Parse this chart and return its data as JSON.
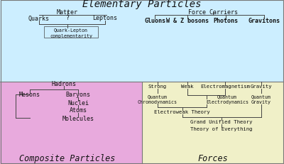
{
  "title": "Elementary Particles",
  "bg_top": "#cceeff",
  "bg_bottom_left": "#e8aadd",
  "bg_bottom_right": "#f0f0c8",
  "border_color": "#777777",
  "line_color": "#444444",
  "font_color": "#111111",
  "top_left_label": "Matter",
  "top_right_label": "Force Carriers",
  "matter_items": [
    "Quarks",
    "?",
    "Leptons"
  ],
  "matter_sub": "Quark-Lepton\ncomplementarity",
  "force_items": [
    "Gluons",
    "W & Z bosons",
    "Photons",
    "Gravitons"
  ],
  "force_sub": [
    "Strong",
    "Weak",
    "Electromagnetism",
    "Gravity"
  ],
  "composite_left": "Composite Particles",
  "composite_right": "Forces",
  "hadrons": "Hadrons",
  "mesons": "Mesons",
  "baryons": "Baryons",
  "nuclei": "Nuclei",
  "atoms": "Atoms",
  "molecules": "Molecules",
  "qcd": "Quantum\nChromodynamics",
  "qed": "Quantum\nElectrodynamics",
  "qg": "Quantum\nGravity",
  "ewt": "Electroweak Theory",
  "gut": "Grand Unified Theory",
  "toe": "Theory of Everything"
}
